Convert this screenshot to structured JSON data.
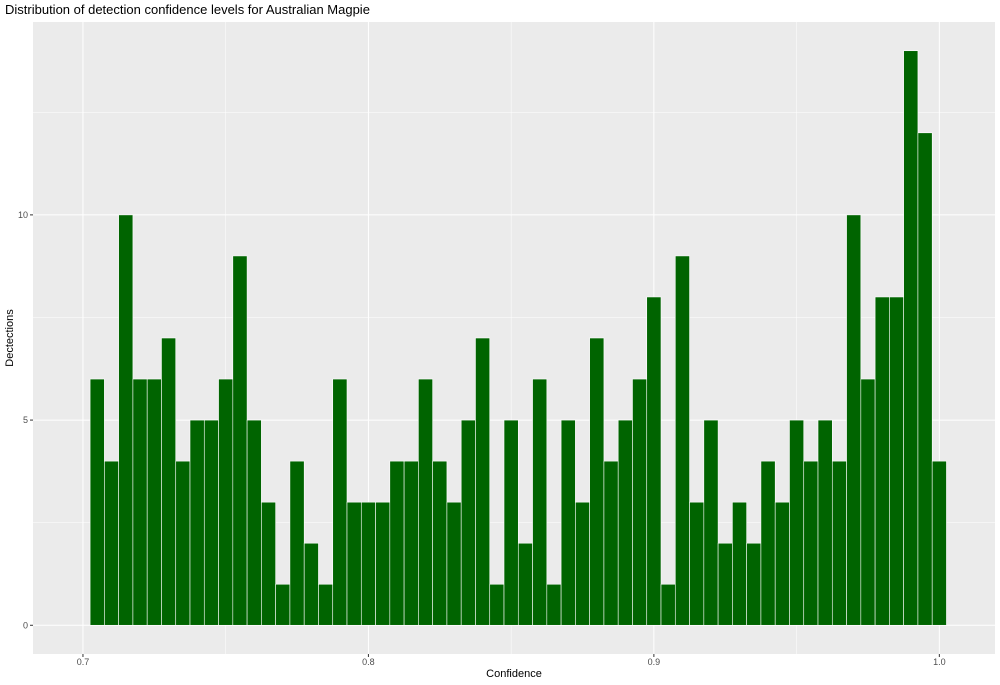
{
  "chart_data": {
    "type": "bar",
    "title": "Distribution of detection confidence levels for Australian Magpie",
    "xlabel": "Confidence",
    "ylabel": "Dectections",
    "xlim": [
      0.6825,
      1.0195
    ],
    "ylim": [
      -0.7,
      14.7
    ],
    "x_ticks": [
      {
        "value": 0.7,
        "label": "0.7"
      },
      {
        "value": 0.8,
        "label": "0.8"
      },
      {
        "value": 0.9,
        "label": "0.9"
      },
      {
        "value": 1.0,
        "label": "1.0"
      }
    ],
    "y_ticks": [
      {
        "value": 0,
        "label": "0"
      },
      {
        "value": 5,
        "label": "5"
      },
      {
        "value": 10,
        "label": "10"
      }
    ],
    "bin_start": 0.7025,
    "bin_width": 0.005,
    "values": [
      6,
      4,
      10,
      6,
      6,
      7,
      4,
      5,
      5,
      6,
      9,
      5,
      3,
      1,
      4,
      2,
      1,
      6,
      3,
      3,
      3,
      4,
      4,
      6,
      4,
      3,
      5,
      7,
      1,
      5,
      2,
      6,
      1,
      5,
      3,
      7,
      4,
      5,
      6,
      8,
      1,
      9,
      3,
      5,
      2,
      3,
      2,
      4,
      3,
      5,
      4,
      5,
      4,
      10,
      6,
      8,
      8,
      14,
      12,
      4
    ],
    "bar_color": "#006400",
    "bar_outline": "#ffffff",
    "panel_color": "#ebebeb",
    "grid": true,
    "grid_color": "#ffffff"
  }
}
